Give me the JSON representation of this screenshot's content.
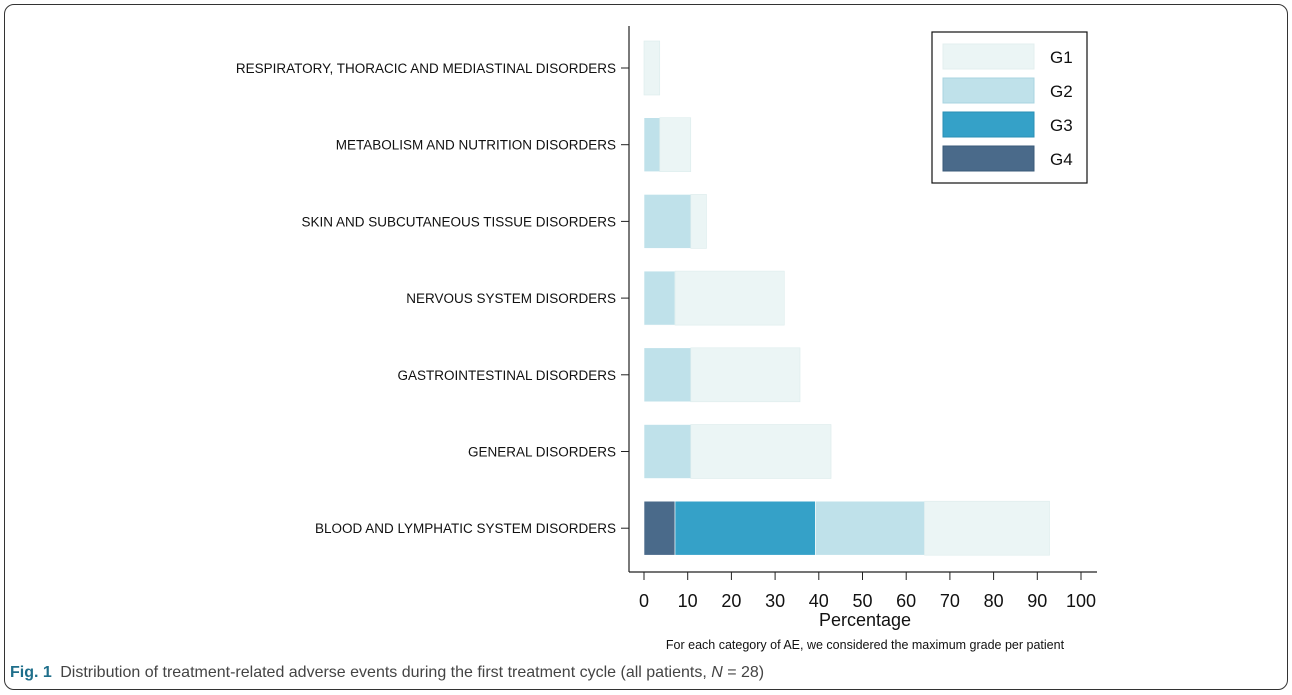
{
  "chart_data": {
    "type": "bar",
    "orientation": "horizontal",
    "stacked": true,
    "categories": [
      "RESPIRATORY, THORACIC AND MEDIASTINAL DISORDERS",
      "METABOLISM AND NUTRITION DISORDERS",
      "SKIN AND SUBCUTANEOUS TISSUE DISORDERS",
      "NERVOUS SYSTEM DISORDERS",
      "GASTROINTESTINAL DISORDERS",
      "GENERAL DISORDERS",
      "BLOOD AND LYMPHATIC SYSTEM DISORDERS"
    ],
    "series": [
      {
        "name": "G4",
        "color": "#4a6a8a",
        "values": [
          0,
          0,
          0,
          0,
          0,
          0,
          7.1
        ]
      },
      {
        "name": "G3",
        "color": "#35a1c8",
        "values": [
          0,
          0,
          0,
          0,
          0,
          0,
          32.1
        ]
      },
      {
        "name": "G2",
        "color": "#bfe1ea",
        "values": [
          0,
          3.6,
          10.7,
          7.1,
          10.7,
          10.7,
          25.0
        ]
      },
      {
        "name": "G1",
        "color": "#ebf5f5",
        "values": [
          3.6,
          7.1,
          3.6,
          25.0,
          25.0,
          32.1,
          28.6
        ]
      }
    ],
    "legend_order": [
      "G1",
      "G2",
      "G3",
      "G4"
    ],
    "legend_position": "top-right",
    "xlabel": "Percentage",
    "ylabel": "",
    "xlim": [
      0,
      100
    ],
    "xticks": [
      0,
      10,
      20,
      30,
      40,
      50,
      60,
      70,
      80,
      90,
      100
    ],
    "note": "For each category of AE, we considered the maximum grade per patient",
    "grid": false
  },
  "caption": {
    "figure_label": "Fig. 1",
    "text_before": "Distribution of treatment-related adverse events during the first treatment cycle (all patients, ",
    "n_symbol": "N",
    "text_after": " = 28)"
  }
}
